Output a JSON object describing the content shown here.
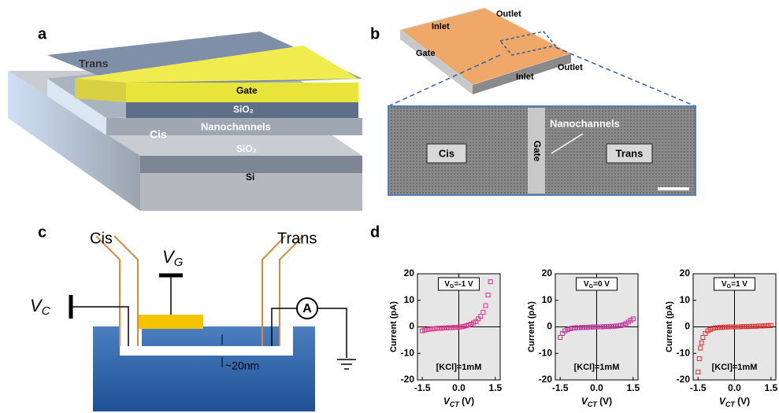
{
  "panel_a": {
    "label": "a",
    "trans": "Trans",
    "gate": "Gate",
    "sio2_top": "SiO₂",
    "cis": "Cis",
    "nanochannels": "Nanochannels",
    "sio2_bottom": "SiO₂",
    "si": "Si"
  },
  "panel_b": {
    "label": "b",
    "inlet_left": "Inlet",
    "outlet_top": "Outlet",
    "gate_chip": "Gate",
    "inlet_bottom": "Inlet",
    "outlet_right": "Outlet",
    "cis": "Cis",
    "gate": "Gate",
    "nanochannels": "Nanochannels",
    "trans": "Trans"
  },
  "panel_c": {
    "label": "c",
    "cis": "Cis",
    "trans": "Trans",
    "vg": {
      "main": "V",
      "sub": "G"
    },
    "vc": {
      "main": "V",
      "sub": "C"
    },
    "ammeter": "A",
    "gap": "~20nm"
  },
  "panel_d": {
    "label": "d"
  },
  "chart_data": [
    {
      "type": "scatter",
      "marker": "square",
      "color": "#e0308a",
      "annotation": {
        "main": "V",
        "sub": "G",
        "rest": "=-1 V"
      },
      "note": "[KCl]=1mM",
      "y_label": "Current (pA)",
      "x_label": {
        "main": "V",
        "sub": "CT",
        "rest": " (V)"
      },
      "x": [
        -1.5,
        -1.4,
        -1.3,
        -1.2,
        -1.1,
        -1.0,
        -0.9,
        -0.8,
        -0.7,
        -0.6,
        -0.5,
        -0.4,
        -0.3,
        -0.2,
        -0.1,
        0.0,
        0.1,
        0.2,
        0.3,
        0.4,
        0.5,
        0.6,
        0.7,
        0.8,
        0.9,
        1.0,
        1.1,
        1.2,
        1.3
      ],
      "values": [
        -1.5,
        -1.2,
        -1,
        -0.9,
        -0.8,
        -0.7,
        -0.6,
        -0.5,
        -0.5,
        -0.4,
        -0.4,
        -0.3,
        -0.3,
        -0.2,
        -0.2,
        -0.1,
        0,
        0.2,
        0.4,
        0.7,
        1,
        1.5,
        2,
        3,
        4,
        5.5,
        8,
        12,
        17
      ],
      "xlim": [
        -1.7,
        1.7
      ],
      "ylim": [
        -20,
        20
      ],
      "xticks": [
        -1.5,
        {
          "value": 0,
          "label": "0.0"
        },
        1.5
      ],
      "yticks": [
        -20,
        -10,
        0,
        10,
        20
      ]
    },
    {
      "type": "scatter",
      "marker": "square",
      "color": "#c0309a",
      "annotation": {
        "main": "V",
        "sub": "G",
        "rest": "=0 V"
      },
      "note": "[KCl]=1mM",
      "y_label": "Current (pA)",
      "x_label": {
        "main": "V",
        "sub": "CT",
        "rest": " (V)"
      },
      "x": [
        -1.5,
        -1.4,
        -1.3,
        -1.2,
        -1.1,
        -1.0,
        -0.9,
        -0.8,
        -0.7,
        -0.6,
        -0.5,
        -0.4,
        -0.3,
        -0.2,
        -0.1,
        0.0,
        0.1,
        0.2,
        0.3,
        0.4,
        0.5,
        0.6,
        0.7,
        0.8,
        0.9,
        1.0,
        1.1,
        1.2,
        1.3,
        1.4,
        1.5
      ],
      "values": [
        -4,
        -2.5,
        -1.5,
        -1,
        -0.7,
        -0.5,
        -0.4,
        -0.3,
        -0.3,
        -0.2,
        -0.2,
        -0.2,
        -0.1,
        -0.1,
        0,
        0,
        0,
        0,
        0.1,
        0.1,
        0.1,
        0.2,
        0.2,
        0.3,
        0.4,
        0.5,
        0.8,
        1.2,
        1.8,
        2.5,
        3
      ],
      "xlim": [
        -1.7,
        1.7
      ],
      "ylim": [
        -20,
        20
      ],
      "xticks": [
        -1.5,
        {
          "value": 0,
          "label": "0.0"
        },
        1.5
      ],
      "yticks": [
        -20,
        -10,
        0,
        10,
        20
      ]
    },
    {
      "type": "scatter",
      "marker": "square",
      "color": "#e03030",
      "annotation": {
        "main": "V",
        "sub": "G",
        "rest": "=1 V"
      },
      "note": "[KCl]=1mM",
      "y_label": "Current (pA)",
      "x_label": {
        "main": "V",
        "sub": "CT",
        "rest": " (V)"
      },
      "x": [
        -1.5,
        -1.45,
        -1.4,
        -1.35,
        -1.3,
        -1.2,
        -1.1,
        -1.0,
        -0.9,
        -0.8,
        -0.7,
        -0.6,
        -0.5,
        -0.4,
        -0.3,
        -0.2,
        -0.1,
        0.0,
        0.1,
        0.2,
        0.3,
        0.4,
        0.5,
        0.6,
        0.7,
        0.8,
        0.9,
        1.0,
        1.1,
        1.2,
        1.3,
        1.4,
        1.5
      ],
      "values": [
        -17,
        -12,
        -8,
        -6,
        -4,
        -2.5,
        -1.5,
        -1,
        -0.6,
        -0.4,
        -0.3,
        -0.2,
        -0.2,
        -0.1,
        -0.1,
        0,
        0,
        0,
        0,
        0,
        0.1,
        0.1,
        0.1,
        0.1,
        0.2,
        0.2,
        0.2,
        0.3,
        0.3,
        0.4,
        0.4,
        0.5,
        0.5
      ],
      "xlim": [
        -1.7,
        1.7
      ],
      "ylim": [
        -20,
        20
      ],
      "xticks": [
        -1.5,
        {
          "value": 0,
          "label": "0.0"
        },
        1.5
      ],
      "yticks": [
        -20,
        -10,
        0,
        10,
        20
      ]
    }
  ]
}
